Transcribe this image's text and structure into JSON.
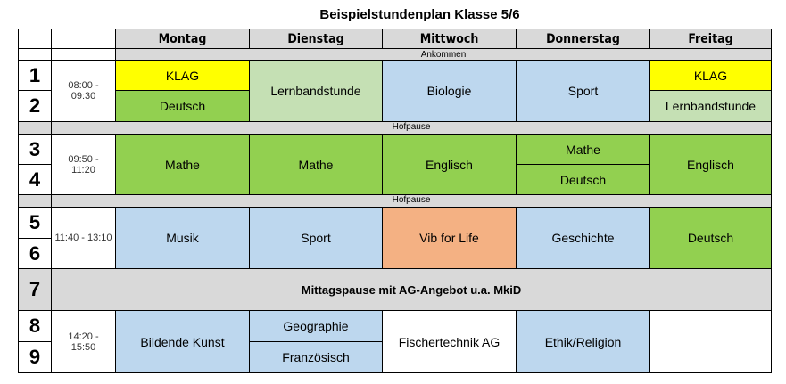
{
  "title": "Beispielstundenplan Klasse 5/6",
  "days": [
    "Montag",
    "Dienstag",
    "Mittwoch",
    "Donnerstag",
    "Freitag"
  ],
  "periods": [
    "1",
    "2",
    "3",
    "4",
    "5",
    "6",
    "7",
    "8",
    "9"
  ],
  "times": [
    "08:00 - 09:30",
    "09:50 - 11:20",
    "11:40 - 13:10",
    "14:20 - 15:50"
  ],
  "breaks": {
    "arrival": "Ankommen",
    "recess1": "Hofpause",
    "recess2": "Hofpause",
    "lunch": "Mittagspause  mit AG-Angebot u.a. MkiD"
  },
  "block1": {
    "mon_1": "KLAG",
    "mon_2": "Deutsch",
    "tue": "Lernbandstunde",
    "wed": "Biologie",
    "thu": "Sport",
    "fri_1": "KLAG",
    "fri_2": "Lernbandstunde"
  },
  "block2": {
    "mon": "Mathe",
    "tue": "Mathe",
    "wed": "Englisch",
    "thu_1": "Mathe",
    "thu_2": "Deutsch",
    "fri": "Englisch"
  },
  "block3": {
    "mon": "Musik",
    "tue": "Sport",
    "wed": "Vib for Life",
    "thu": "Geschichte",
    "fri": "Deutsch"
  },
  "block4": {
    "mon": "Bildende Kunst",
    "tue_1": "Geographie",
    "tue_2": "Französisch",
    "wed": "Fischertechnik AG",
    "thu": "Ethik/Religion",
    "fri": ""
  },
  "colors": {
    "klag": "#ffff00",
    "core": "#92d050",
    "lernband": "#c5e0b4",
    "subject": "#bdd7ee",
    "special": "#f4b183",
    "break": "#d9d9d9"
  }
}
